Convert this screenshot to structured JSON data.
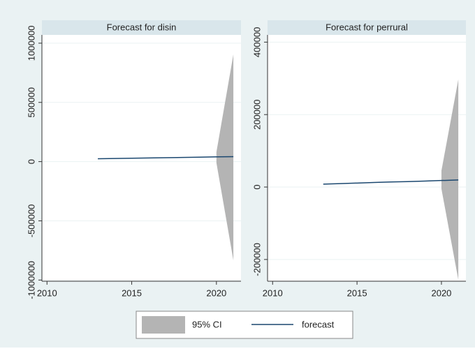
{
  "chart_data": [
    {
      "type": "line",
      "title": "Forecast for disin",
      "x": [
        2013,
        2014,
        2015,
        2016,
        2017,
        2018,
        2019,
        2020,
        2021
      ],
      "series": [
        {
          "name": "95% CI",
          "color": "#b4b4b4",
          "upper": [
            null,
            null,
            null,
            null,
            null,
            null,
            null,
            80000,
            905000
          ],
          "lower": [
            null,
            null,
            null,
            null,
            null,
            null,
            null,
            -10000,
            -833000
          ]
        },
        {
          "name": "forecast",
          "color": "#1a476f",
          "values": [
            24000,
            26000,
            28500,
            31000,
            33000,
            35000,
            37500,
            40000,
            42000
          ]
        }
      ],
      "xlim": [
        2009.7,
        2021.45
      ],
      "xticks": [
        2010,
        2015,
        2020
      ],
      "ylim": [
        -1010000,
        1070000
      ],
      "yticks": [
        -1000000,
        -500000,
        0,
        500000,
        1000000
      ],
      "grid": true
    },
    {
      "type": "line",
      "title": "Forecast for perrural",
      "x": [
        2013,
        2014,
        2015,
        2016,
        2017,
        2018,
        2019,
        2020,
        2021
      ],
      "series": [
        {
          "color": "#b4b4b4",
          "upper": [
            null,
            null,
            null,
            null,
            null,
            null,
            null,
            45000,
            297000
          ],
          "lower": [
            null,
            null,
            null,
            null,
            null,
            null,
            null,
            -5000,
            -256000
          ]
        },
        {
          "color": "#1a476f",
          "values": [
            8000,
            9500,
            11000,
            12500,
            14000,
            15000,
            16500,
            18000,
            19500
          ]
        }
      ],
      "xlim": [
        2009.7,
        2021.45
      ],
      "xticks": [
        2010,
        2015,
        2020
      ],
      "ylim": [
        -260000,
        420000
      ],
      "yticks": [
        -200000,
        0,
        200000,
        400000
      ],
      "grid": true
    }
  ]
}
